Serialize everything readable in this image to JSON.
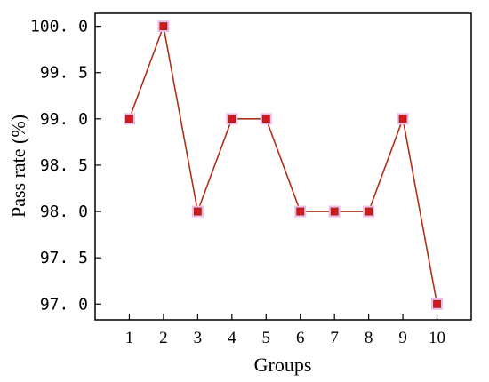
{
  "chart_data": {
    "type": "line",
    "title": "",
    "xlabel": "Groups",
    "ylabel": "Pass rate (%)",
    "x": [
      1,
      2,
      3,
      4,
      5,
      6,
      7,
      8,
      9,
      10
    ],
    "y_tick_labels": [
      "97. 0",
      "97. 5",
      "98. 0",
      "98. 5",
      "99. 0",
      "99. 5",
      "100. 0"
    ],
    "y_ticks": [
      97.0,
      97.5,
      98.0,
      98.5,
      99.0,
      99.5,
      100.0
    ],
    "series": [
      {
        "values": [
          99.0,
          100.0,
          98.0,
          99.0,
          99.0,
          98.0,
          98.0,
          98.0,
          99.0,
          97.0
        ]
      }
    ],
    "xlim": [
      0,
      11
    ],
    "ylim": [
      96.83,
      100.14
    ],
    "grid": false,
    "line_color": "#b0301a",
    "marker_color": "#d4191c",
    "marker_halo_color": "#f2b8ea"
  }
}
